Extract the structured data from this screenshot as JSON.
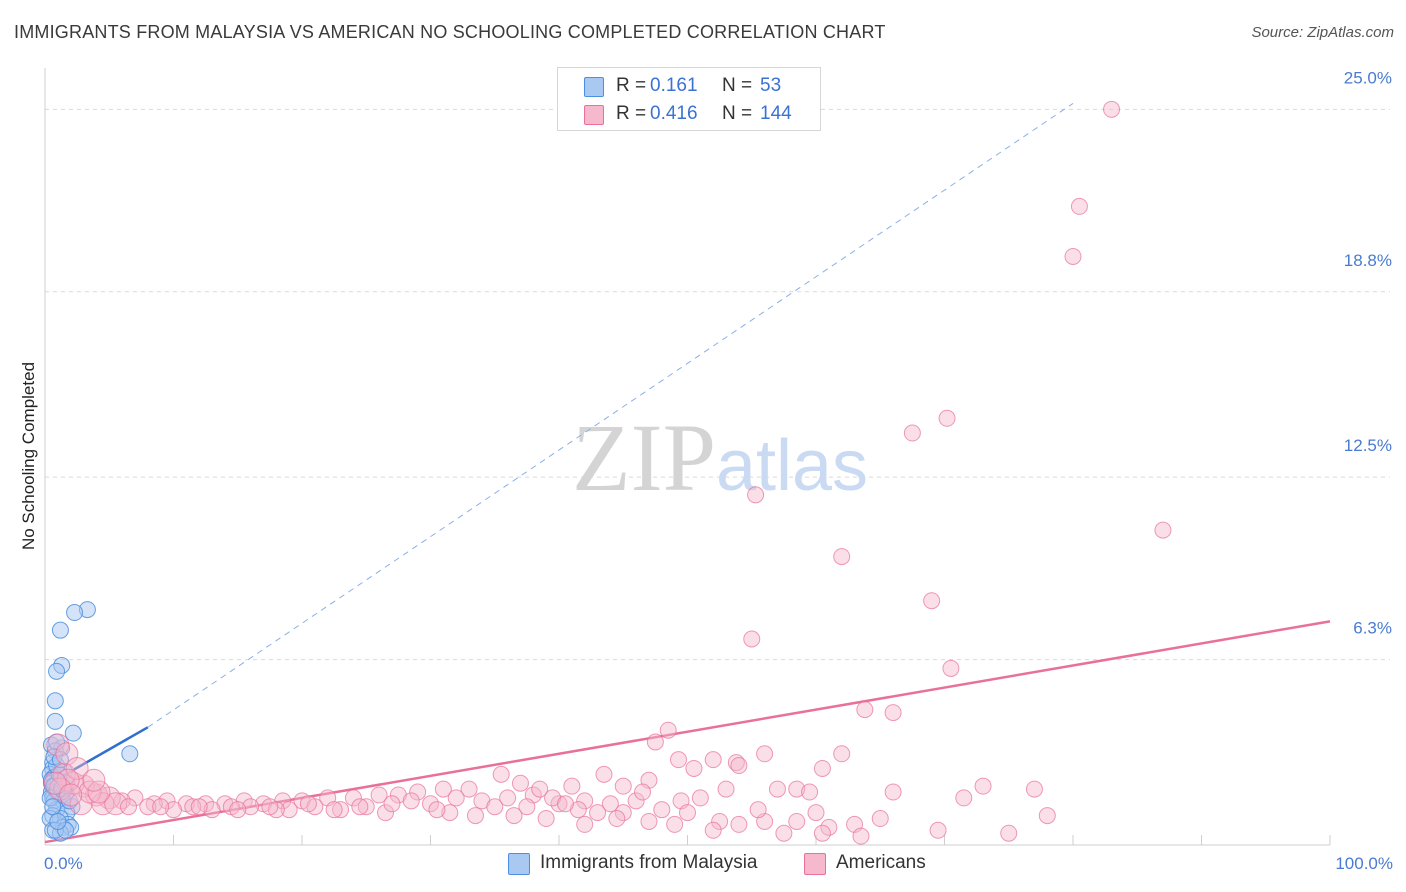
{
  "title": "IMMIGRANTS FROM MALAYSIA VS AMERICAN NO SCHOOLING COMPLETED CORRELATION CHART",
  "source": "Source: ZipAtlas.com",
  "watermark": "ZIPatlas",
  "colors": {
    "blue": "#4a8fe0",
    "blue_fill": "#a9c8f2",
    "blue_line": "#2f6fd0",
    "pink": "#e8709a",
    "pink_fill": "#f5b8cc",
    "axis_text": "#4a7bd0",
    "grid": "#d9d9d9"
  },
  "legend": {
    "rows": [
      {
        "r_label": "R =",
        "r_value": "0.161",
        "n_label": "N =",
        "n_value": "53"
      },
      {
        "r_label": "R =",
        "r_value": "0.416",
        "n_label": "N =",
        "n_value": "144"
      }
    ]
  },
  "bottom_legend": {
    "series_a": "Immigrants from Malaysia",
    "series_b": "Americans"
  },
  "chart_data": {
    "type": "scatter",
    "title": "IMMIGRANTS FROM MALAYSIA VS AMERICAN NO SCHOOLING COMPLETED CORRELATION CHART",
    "xlabel": "",
    "ylabel": "No Schooling Completed",
    "xlim": [
      0,
      100
    ],
    "ylim": [
      0,
      26.2
    ],
    "x_tick_labels": [
      {
        "value": 0,
        "label": "0.0%"
      },
      {
        "value": 100,
        "label": "100.0%"
      }
    ],
    "y_tick_labels": [
      {
        "value": 6.3,
        "label": "6.3%"
      },
      {
        "value": 12.5,
        "label": "12.5%"
      },
      {
        "value": 18.8,
        "label": "18.8%"
      },
      {
        "value": 25.0,
        "label": "25.0%"
      }
    ],
    "grid": true,
    "series": [
      {
        "name": "Immigrants from Malaysia",
        "R": 0.161,
        "N": 53,
        "trend": {
          "x": [
            0,
            8
          ],
          "y": [
            2.0,
            4.0
          ],
          "extended_to": [
            80,
            25.2
          ]
        },
        "points": [
          [
            3.3,
            8.0
          ],
          [
            1.2,
            7.3
          ],
          [
            2.3,
            7.9
          ],
          [
            1.3,
            6.1
          ],
          [
            0.9,
            5.9
          ],
          [
            0.8,
            4.9
          ],
          [
            0.8,
            4.2
          ],
          [
            2.2,
            3.8
          ],
          [
            0.5,
            3.4
          ],
          [
            1.3,
            3.3
          ],
          [
            0.8,
            3.2
          ],
          [
            6.6,
            3.1
          ],
          [
            0.9,
            3.5
          ],
          [
            0.6,
            2.8
          ],
          [
            0.6,
            2.6
          ],
          [
            1.5,
            2.5
          ],
          [
            0.4,
            2.4
          ],
          [
            0.7,
            2.3
          ],
          [
            1.0,
            2.2
          ],
          [
            0.5,
            2.1
          ],
          [
            0.6,
            2.0
          ],
          [
            0.8,
            1.9
          ],
          [
            1.7,
            2.1
          ],
          [
            0.5,
            1.8
          ],
          [
            0.9,
            1.8
          ],
          [
            0.6,
            1.6
          ],
          [
            1.6,
            1.7
          ],
          [
            0.7,
            1.5
          ],
          [
            1.4,
            1.5
          ],
          [
            2.1,
            1.3
          ],
          [
            0.9,
            1.2
          ],
          [
            1.7,
            1.1
          ],
          [
            0.6,
            1.0
          ],
          [
            1.2,
            0.9
          ],
          [
            0.4,
            0.9
          ],
          [
            1.8,
            0.7
          ],
          [
            1.4,
            0.6
          ],
          [
            0.6,
            0.5
          ],
          [
            2.0,
            0.6
          ],
          [
            1.2,
            0.4
          ],
          [
            0.8,
            0.5
          ],
          [
            1.6,
            0.5
          ],
          [
            0.5,
            2.2
          ],
          [
            0.7,
            2.0
          ],
          [
            1.1,
            2.4
          ],
          [
            0.4,
            1.6
          ],
          [
            0.9,
            2.7
          ],
          [
            1.3,
            1.9
          ],
          [
            0.6,
            1.3
          ],
          [
            1.0,
            0.8
          ],
          [
            1.9,
            1.5
          ],
          [
            0.7,
            3.0
          ],
          [
            1.2,
            2.9
          ]
        ]
      },
      {
        "name": "Americans",
        "R": 0.416,
        "N": 144,
        "trend": {
          "x": [
            0,
            100
          ],
          "y": [
            0.1,
            7.6
          ]
        },
        "points": [
          [
            83.0,
            25.0
          ],
          [
            80.5,
            21.7
          ],
          [
            80.0,
            20.0
          ],
          [
            70.2,
            14.5
          ],
          [
            67.5,
            14.0
          ],
          [
            55.3,
            11.9
          ],
          [
            87.0,
            10.7
          ],
          [
            62.0,
            9.8
          ],
          [
            69.0,
            8.3
          ],
          [
            55.0,
            7.0
          ],
          [
            70.5,
            6.0
          ],
          [
            63.8,
            4.6
          ],
          [
            66.0,
            4.5
          ],
          [
            48.5,
            3.9
          ],
          [
            47.5,
            3.5
          ],
          [
            56.0,
            3.1
          ],
          [
            62.0,
            3.1
          ],
          [
            52.0,
            2.9
          ],
          [
            53.8,
            2.8
          ],
          [
            49.3,
            2.9
          ],
          [
            50.5,
            2.6
          ],
          [
            54.0,
            2.7
          ],
          [
            60.5,
            2.6
          ],
          [
            43.5,
            2.4
          ],
          [
            35.5,
            2.4
          ],
          [
            47.0,
            2.2
          ],
          [
            37.0,
            2.1
          ],
          [
            41.0,
            2.0
          ],
          [
            45.0,
            2.0
          ],
          [
            53.0,
            1.9
          ],
          [
            57.0,
            1.9
          ],
          [
            58.5,
            1.9
          ],
          [
            59.5,
            1.8
          ],
          [
            66.0,
            1.8
          ],
          [
            73.0,
            2.0
          ],
          [
            77.0,
            1.9
          ],
          [
            71.5,
            1.6
          ],
          [
            51.0,
            1.6
          ],
          [
            49.5,
            1.5
          ],
          [
            33.0,
            1.9
          ],
          [
            31.0,
            1.9
          ],
          [
            29.0,
            1.8
          ],
          [
            27.5,
            1.7
          ],
          [
            26.0,
            1.7
          ],
          [
            24.0,
            1.6
          ],
          [
            22.0,
            1.6
          ],
          [
            20.0,
            1.5
          ],
          [
            18.5,
            1.5
          ],
          [
            17.0,
            1.4
          ],
          [
            15.5,
            1.5
          ],
          [
            14.0,
            1.4
          ],
          [
            12.5,
            1.4
          ],
          [
            11.0,
            1.4
          ],
          [
            9.5,
            1.5
          ],
          [
            8.5,
            1.4
          ],
          [
            7.0,
            1.6
          ],
          [
            6.0,
            1.5
          ],
          [
            5.0,
            1.6
          ],
          [
            4.0,
            1.7
          ],
          [
            3.0,
            2.0
          ],
          [
            2.2,
            2.1
          ],
          [
            1.5,
            2.4
          ],
          [
            1.0,
            3.4
          ],
          [
            1.7,
            3.1
          ],
          [
            2.8,
            1.4
          ],
          [
            4.5,
            1.4
          ],
          [
            10.0,
            1.2
          ],
          [
            13.0,
            1.2
          ],
          [
            16.0,
            1.3
          ],
          [
            19.0,
            1.2
          ],
          [
            21.0,
            1.3
          ],
          [
            23.0,
            1.2
          ],
          [
            25.0,
            1.3
          ],
          [
            28.5,
            1.5
          ],
          [
            30.0,
            1.4
          ],
          [
            32.0,
            1.6
          ],
          [
            34.0,
            1.5
          ],
          [
            36.0,
            1.6
          ],
          [
            38.0,
            1.7
          ],
          [
            40.0,
            1.4
          ],
          [
            42.0,
            1.5
          ],
          [
            44.0,
            1.4
          ],
          [
            46.0,
            1.5
          ],
          [
            48.0,
            1.2
          ],
          [
            38.5,
            1.9
          ],
          [
            39.5,
            1.6
          ],
          [
            41.5,
            1.2
          ],
          [
            43.0,
            1.1
          ],
          [
            46.5,
            1.8
          ],
          [
            40.5,
            1.4
          ],
          [
            37.5,
            1.3
          ],
          [
            35.0,
            1.3
          ],
          [
            31.5,
            1.1
          ],
          [
            26.5,
            1.1
          ],
          [
            18.0,
            1.2
          ],
          [
            14.5,
            1.3
          ],
          [
            11.5,
            1.3
          ],
          [
            8.0,
            1.3
          ],
          [
            5.5,
            1.4
          ],
          [
            47.0,
            0.8
          ],
          [
            49.0,
            0.7
          ],
          [
            52.5,
            0.8
          ],
          [
            54.0,
            0.7
          ],
          [
            56.0,
            0.8
          ],
          [
            58.5,
            0.8
          ],
          [
            61.0,
            0.6
          ],
          [
            63.0,
            0.7
          ],
          [
            65.0,
            0.9
          ],
          [
            69.5,
            0.5
          ],
          [
            75.0,
            0.4
          ],
          [
            78.0,
            1.0
          ],
          [
            60.0,
            1.1
          ],
          [
            55.5,
            1.2
          ],
          [
            50.0,
            1.1
          ],
          [
            45.0,
            1.1
          ],
          [
            63.5,
            0.3
          ],
          [
            60.5,
            0.4
          ],
          [
            57.5,
            0.4
          ],
          [
            52.0,
            0.5
          ],
          [
            44.5,
            0.9
          ],
          [
            42.0,
            0.7
          ],
          [
            39.0,
            0.9
          ],
          [
            36.5,
            1.0
          ],
          [
            33.5,
            1.0
          ],
          [
            30.5,
            1.2
          ],
          [
            27.0,
            1.4
          ],
          [
            24.5,
            1.3
          ],
          [
            22.5,
            1.2
          ],
          [
            20.5,
            1.4
          ],
          [
            17.5,
            1.3
          ],
          [
            15.0,
            1.2
          ],
          [
            12.0,
            1.3
          ],
          [
            9.0,
            1.3
          ],
          [
            6.5,
            1.3
          ],
          [
            3.5,
            1.8
          ],
          [
            2.5,
            2.6
          ],
          [
            1.8,
            2.2
          ],
          [
            1.2,
            1.9
          ],
          [
            0.8,
            2.1
          ],
          [
            2.0,
            1.7
          ],
          [
            4.2,
            1.8
          ],
          [
            3.8,
            2.2
          ]
        ]
      }
    ]
  }
}
